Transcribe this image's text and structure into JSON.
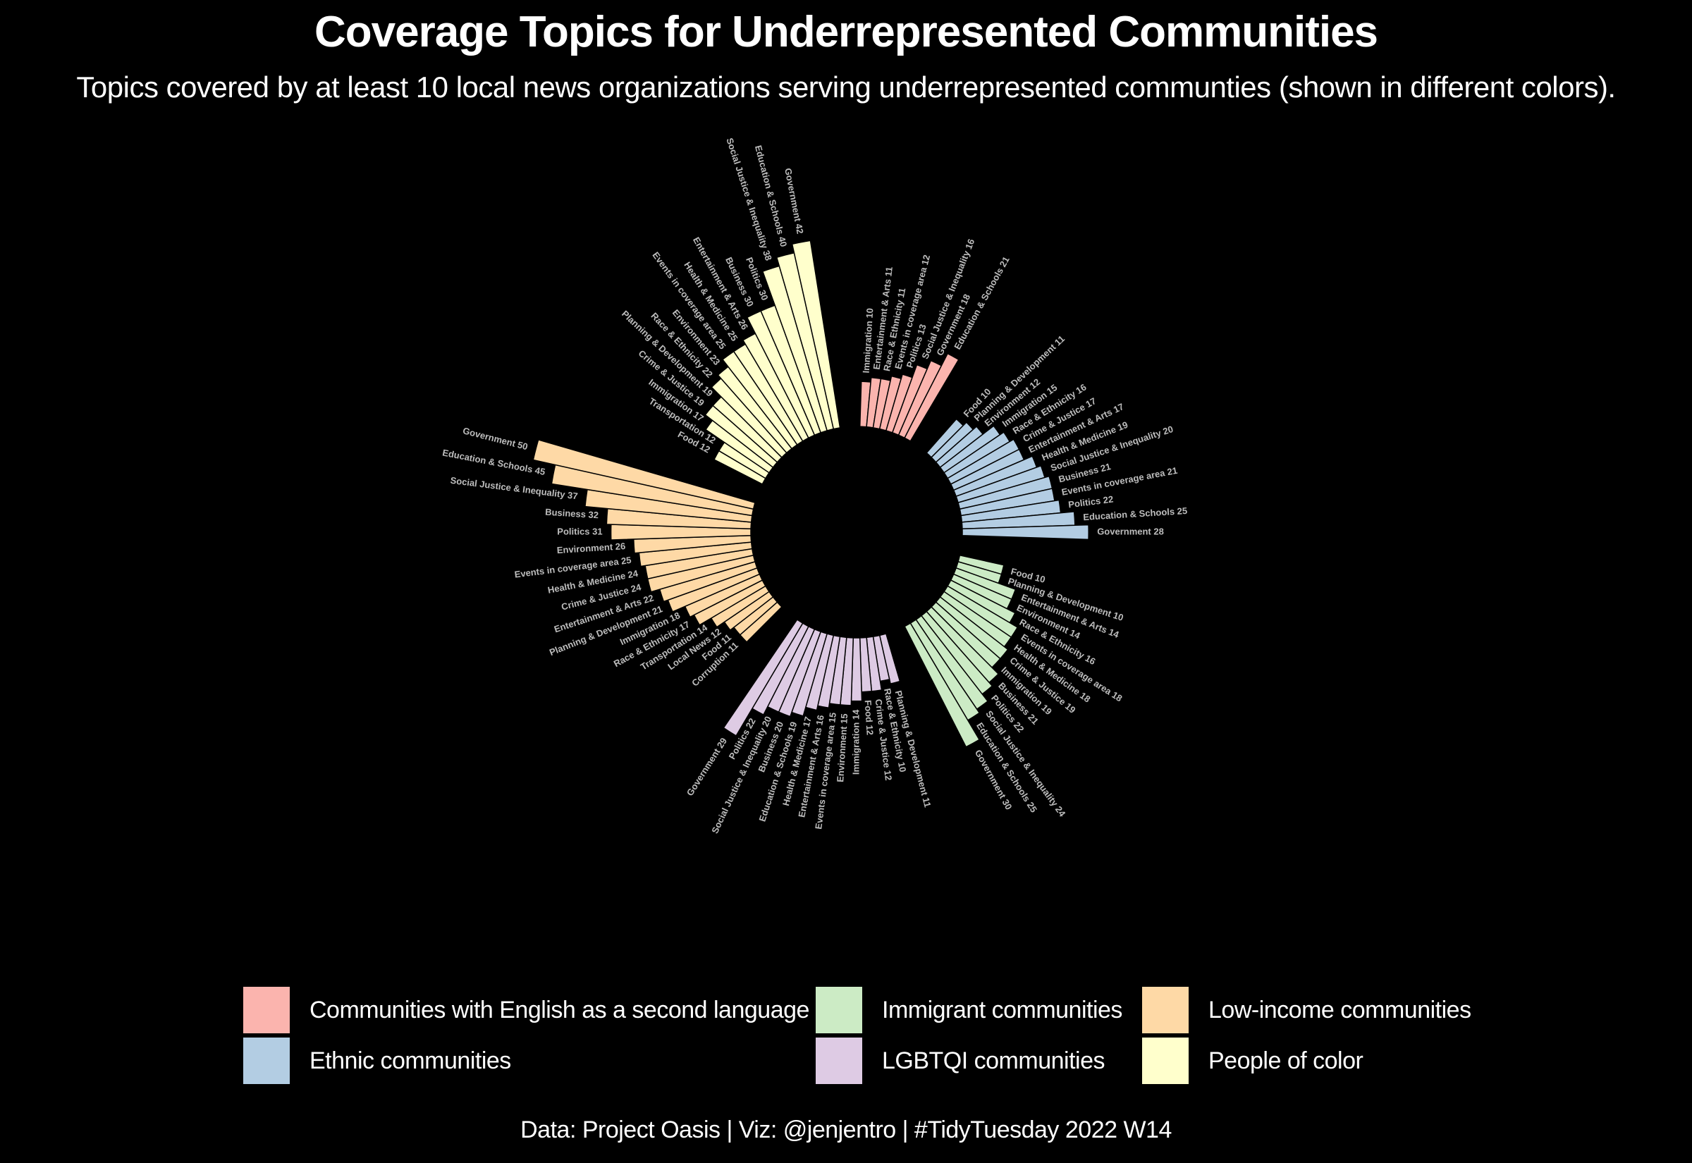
{
  "chart_data": {
    "type": "bar",
    "layout": "circular",
    "title": "Coverage Topics for Underrepresented Communities",
    "subtitle": "Topics covered by at least 10 local news organizations serving underrepresented communties (shown in different colors).",
    "caption": "Data: Project Oasis | Viz: @jenjentro | #TidyTuesday 2022 W14",
    "series": [
      {
        "name": "Communities with English as a second language",
        "color": "#FBB4AE",
        "bars": [
          {
            "topic": "Immigration",
            "value": 10
          },
          {
            "topic": "Entertainment & Arts",
            "value": 11
          },
          {
            "topic": "Race & Ethnicity",
            "value": 11
          },
          {
            "topic": "Events in coverage area",
            "value": 12
          },
          {
            "topic": "Politics",
            "value": 13
          },
          {
            "topic": "Social Justice & Inequality",
            "value": 16
          },
          {
            "topic": "Government",
            "value": 18
          },
          {
            "topic": "Education & Schools",
            "value": 21
          }
        ]
      },
      {
        "name": "Ethnic communities",
        "color": "#B3CDE3",
        "bars": [
          {
            "topic": "Food",
            "value": 10
          },
          {
            "topic": "Planning & Development",
            "value": 11
          },
          {
            "topic": "Environment",
            "value": 12
          },
          {
            "topic": "Immigration",
            "value": 15
          },
          {
            "topic": "Race & Ethnicity",
            "value": 16
          },
          {
            "topic": "Crime & Justice",
            "value": 17
          },
          {
            "topic": "Entertainment & Arts",
            "value": 17
          },
          {
            "topic": "Health & Medicine",
            "value": 19
          },
          {
            "topic": "Social Justice & Inequality",
            "value": 20
          },
          {
            "topic": "Business",
            "value": 21
          },
          {
            "topic": "Events in coverage area",
            "value": 21
          },
          {
            "topic": "Politics",
            "value": 22
          },
          {
            "topic": "Education & Schools",
            "value": 25
          },
          {
            "topic": "Government",
            "value": 28
          }
        ]
      },
      {
        "name": "Immigrant communities",
        "color": "#CCEBC5",
        "bars": [
          {
            "topic": "Food",
            "value": 10
          },
          {
            "topic": "Planning & Development",
            "value": 10
          },
          {
            "topic": "Entertainment & Arts",
            "value": 14
          },
          {
            "topic": "Environment",
            "value": 14
          },
          {
            "topic": "Race & Ethnicity",
            "value": 16
          },
          {
            "topic": "Events in coverage area",
            "value": 18
          },
          {
            "topic": "Health & Medicine",
            "value": 18
          },
          {
            "topic": "Crime & Justice",
            "value": 19
          },
          {
            "topic": "Immigration",
            "value": 19
          },
          {
            "topic": "Business",
            "value": 21
          },
          {
            "topic": "Politics",
            "value": 22
          },
          {
            "topic": "Social Justice & Inequality",
            "value": 24
          },
          {
            "topic": "Education & Schools",
            "value": 25
          },
          {
            "topic": "Government",
            "value": 30
          }
        ]
      },
      {
        "name": "LGBTQI communities",
        "color": "#DECBE4",
        "bars": [
          {
            "topic": "Planning & Development",
            "value": 11
          },
          {
            "topic": "Race & Ethnicity",
            "value": 10
          },
          {
            "topic": "Crime & Justice",
            "value": 12
          },
          {
            "topic": "Food",
            "value": 12
          },
          {
            "topic": "Immigration",
            "value": 14
          },
          {
            "topic": "Environment",
            "value": 15
          },
          {
            "topic": "Events in coverage area",
            "value": 15
          },
          {
            "topic": "Entertainment & Arts",
            "value": 16
          },
          {
            "topic": "Health & Medicine",
            "value": 17
          },
          {
            "topic": "Education & Schools",
            "value": 19
          },
          {
            "topic": "Business",
            "value": 20
          },
          {
            "topic": "Social Justice & Inequality",
            "value": 20
          },
          {
            "topic": "Politics",
            "value": 22
          },
          {
            "topic": "Government",
            "value": 29
          }
        ]
      },
      {
        "name": "Low-income communities",
        "color": "#FED9A6",
        "bars": [
          {
            "topic": "Corruption",
            "value": 11
          },
          {
            "topic": "Food",
            "value": 11
          },
          {
            "topic": "Local News",
            "value": 12
          },
          {
            "topic": "Transportation",
            "value": 14
          },
          {
            "topic": "Race & Ethnicity",
            "value": 17
          },
          {
            "topic": "Immigration",
            "value": 18
          },
          {
            "topic": "Planning & Development",
            "value": 21
          },
          {
            "topic": "Entertainment & Arts",
            "value": 22
          },
          {
            "topic": "Crime & Justice",
            "value": 24
          },
          {
            "topic": "Health & Medicine",
            "value": 24
          },
          {
            "topic": "Events in coverage area",
            "value": 25
          },
          {
            "topic": "Environment",
            "value": 26
          },
          {
            "topic": "Politics",
            "value": 31
          },
          {
            "topic": "Business",
            "value": 32
          },
          {
            "topic": "Social Justice & Inequality",
            "value": 37
          },
          {
            "topic": "Education & Schools",
            "value": 45
          },
          {
            "topic": "Government",
            "value": 50
          }
        ]
      },
      {
        "name": "People of color",
        "color": "#FFFFCC",
        "bars": [
          {
            "topic": "Food",
            "value": 12
          },
          {
            "topic": "Transportation",
            "value": 12
          },
          {
            "topic": "Immigration",
            "value": 17
          },
          {
            "topic": "Crime & Justice",
            "value": 19
          },
          {
            "topic": "Planning & Development",
            "value": 19
          },
          {
            "topic": "Race & Ethnicity",
            "value": 22
          },
          {
            "topic": "Environment",
            "value": 23
          },
          {
            "topic": "Events in coverage area",
            "value": 25
          },
          {
            "topic": "Health & Medicine",
            "value": 25
          },
          {
            "topic": "Entertainment & Arts",
            "value": 26
          },
          {
            "topic": "Business",
            "value": 30
          },
          {
            "topic": "Politics",
            "value": 30
          },
          {
            "topic": "Social Justice & Inequality",
            "value": 38
          },
          {
            "topic": "Education & Schools",
            "value": 40
          },
          {
            "topic": "Government",
            "value": 42
          }
        ]
      }
    ],
    "legend_position": "bottom",
    "grid": false
  }
}
